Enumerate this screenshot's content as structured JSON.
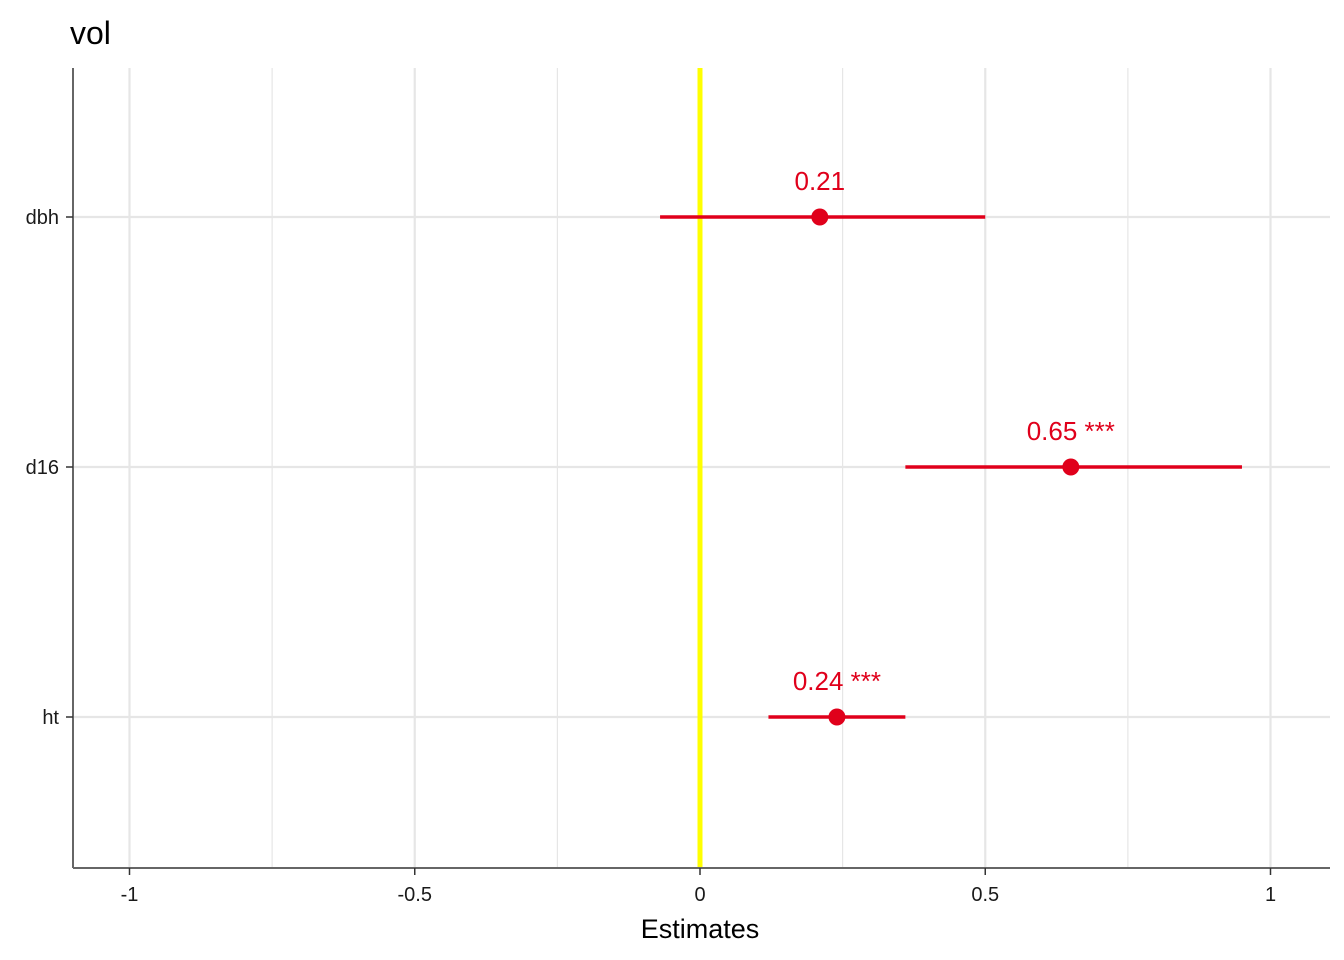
{
  "chart_data": {
    "type": "scatter",
    "title": "vol",
    "xlabel": "Estimates",
    "ylabel": "",
    "xlim": [
      -1.1,
      1.1
    ],
    "x_ticks": [
      -1,
      -0.5,
      0,
      0.5,
      1
    ],
    "x_tick_labels": [
      "-1",
      "-0.5",
      "0",
      "0.5",
      "1"
    ],
    "categories": [
      "dbh",
      "d16",
      "ht"
    ],
    "series": [
      {
        "estimates": [
          0.21,
          0.65,
          0.24
        ],
        "ci_low": [
          -0.07,
          0.36,
          0.12
        ],
        "ci_high": [
          0.5,
          0.95,
          0.36
        ],
        "labels": [
          "0.21",
          "0.65 ***",
          "0.24 ***"
        ]
      }
    ],
    "reference_line": 0,
    "grid": true,
    "colors": {
      "point": "#e0001b",
      "reference_line": "#ffff00",
      "grid": "#e6e6e6",
      "axis": "#666666"
    }
  }
}
